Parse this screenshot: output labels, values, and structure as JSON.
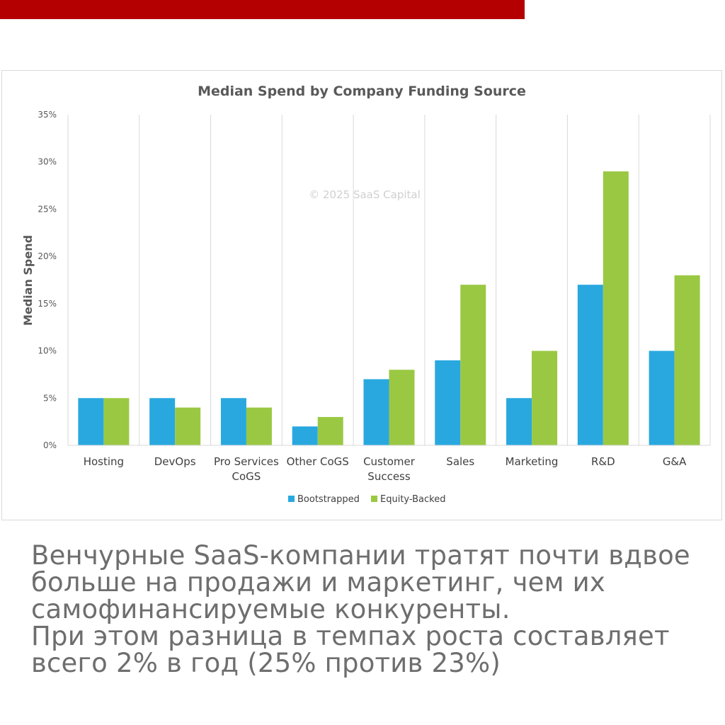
{
  "colors": {
    "top_bar": "#b40000",
    "bootstrapped": "#29a8e0",
    "equity_backed": "#9ac843",
    "grid": "#d9d9d9",
    "caption_text": "#6e6e6e"
  },
  "watermark": "© 2025 SaaS Capital",
  "chart_data": {
    "type": "bar",
    "title": "Median Spend by Company Funding Source",
    "xlabel": "",
    "ylabel": "Median Spend",
    "ylim": [
      0,
      35
    ],
    "y_ticks": [
      "0%",
      "5%",
      "10%",
      "15%",
      "20%",
      "25%",
      "30%",
      "35%"
    ],
    "y_tick_values": [
      0,
      5,
      10,
      15,
      20,
      25,
      30,
      35
    ],
    "categories": [
      [
        "Hosting"
      ],
      [
        "DevOps"
      ],
      [
        "Pro Services",
        "CoGS"
      ],
      [
        "Other CoGS"
      ],
      [
        "Customer",
        "Success"
      ],
      [
        "Sales"
      ],
      [
        "Marketing"
      ],
      [
        "R&D"
      ],
      [
        "G&A"
      ]
    ],
    "series": [
      {
        "name": "Bootstrapped",
        "values": [
          5,
          5,
          5,
          2,
          7,
          9,
          5,
          17,
          10
        ]
      },
      {
        "name": "Equity-Backed",
        "values": [
          5,
          4,
          4,
          3,
          8,
          17,
          10,
          29,
          18
        ]
      }
    ],
    "grid": "vertical separators between categories",
    "legend_position": "bottom"
  },
  "caption": {
    "paragraph1": "Венчурные SaaS-компании тратят почти вдвое больше на продажи и маркетинг, чем их самофинансируемые конкуренты.",
    "paragraph2": "При этом разница в темпах роста составляет всего 2% в год (25% против 23%)"
  }
}
